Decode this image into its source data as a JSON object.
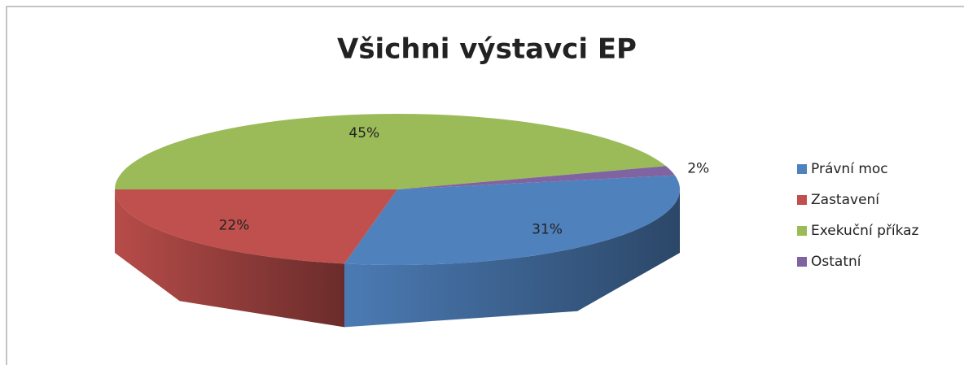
{
  "chart_data": {
    "type": "pie3d",
    "title": "Všichni výstavci EP",
    "categories": [
      "Právní moc",
      "Zastavení",
      "Exekuční příkaz",
      "Ostatní"
    ],
    "values": [
      31,
      22,
      45,
      2
    ],
    "value_labels": [
      "31%",
      "22%",
      "45%",
      "2%"
    ],
    "colors": [
      "#4f81bd",
      "#c0504d",
      "#9bbb59",
      "#8064a2"
    ],
    "legend": "right"
  }
}
